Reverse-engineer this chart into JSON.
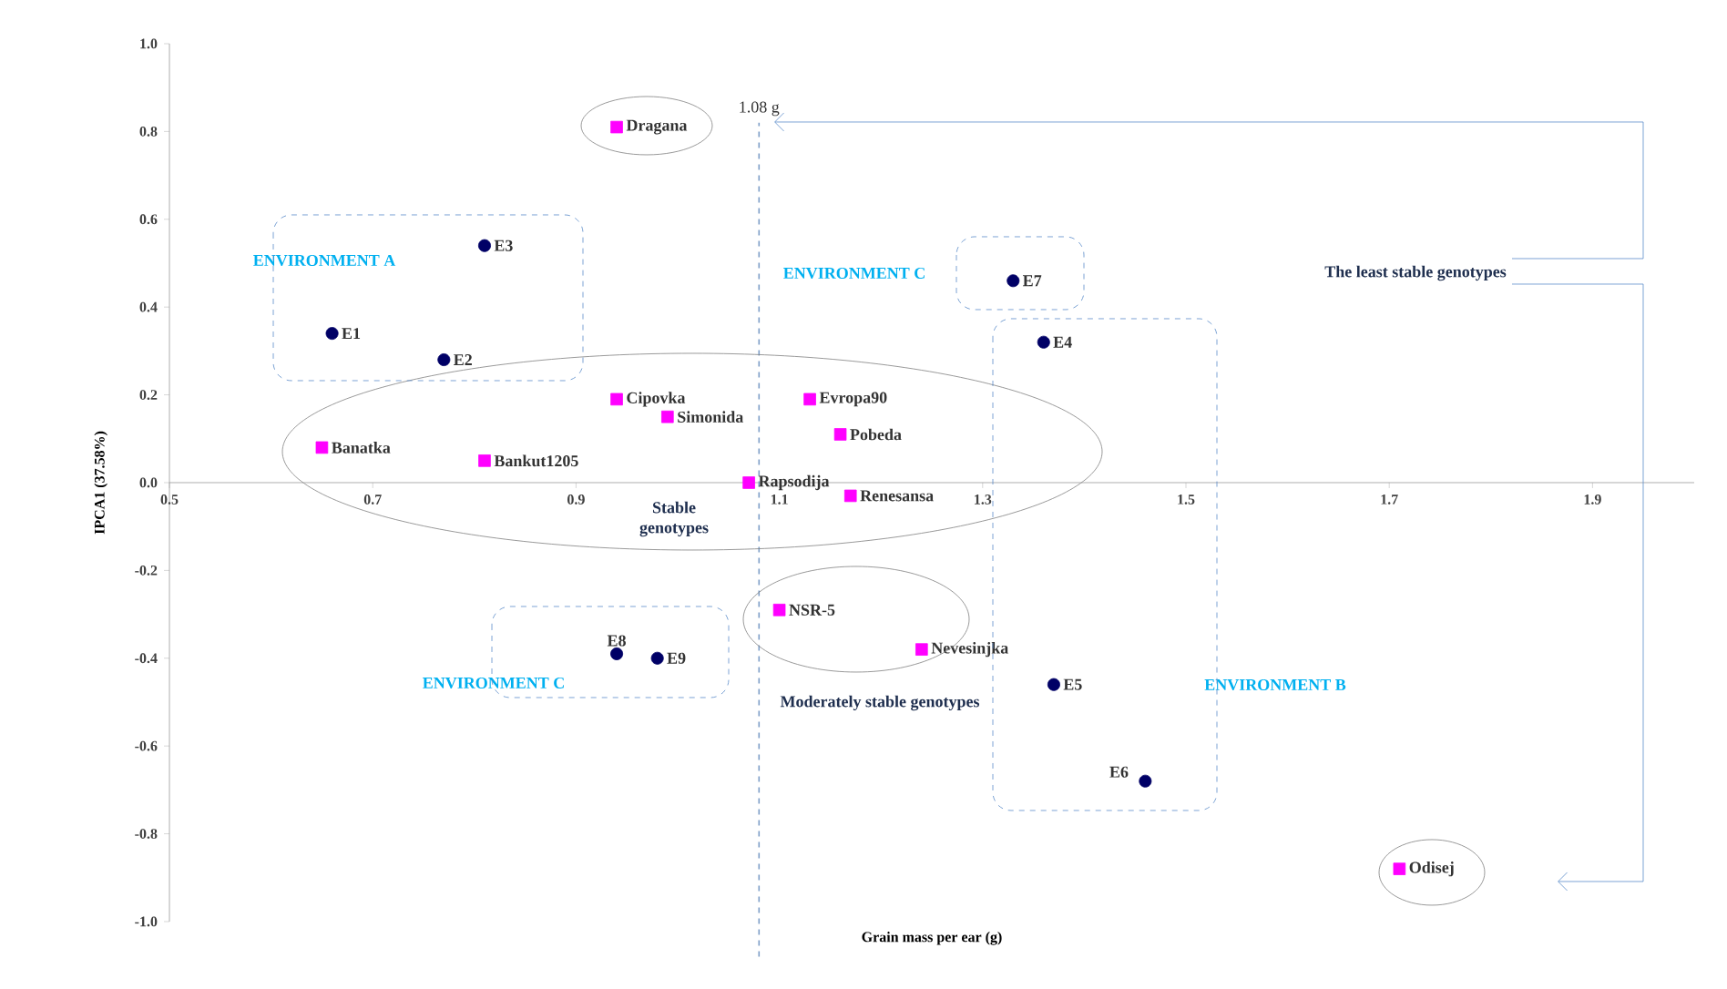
{
  "chart_data": {
    "type": "scatter",
    "xlabel": "Grain mass per ear (g)",
    "ylabel": "IPCA1 (37.58%)",
    "xlim": [
      0.5,
      2.0
    ],
    "ylim": [
      -1.0,
      1.0
    ],
    "xticks": [
      0.5,
      0.7,
      0.9,
      1.1,
      1.3,
      1.5,
      1.7,
      1.9
    ],
    "yticks": [
      {
        "value": -1.0,
        "label": "-1.0"
      },
      {
        "value": -0.8,
        "label": "-0.8"
      },
      {
        "value": -0.6,
        "label": "-0.6"
      },
      {
        "value": -0.4,
        "label": "-0.4"
      },
      {
        "value": -0.2,
        "label": "-0.2"
      },
      {
        "value": 0.0,
        "label": "0.0"
      },
      {
        "value": 0.2,
        "label": "0.2"
      },
      {
        "value": 0.4,
        "label": "0.4"
      },
      {
        "value": 0.6,
        "label": "0.6"
      },
      {
        "value": 0.8,
        "label": "0.8"
      },
      {
        "value": 1.0,
        "label": "1.0"
      }
    ],
    "series": [
      {
        "color": "#ff00ff",
        "marker": "square",
        "x": [
          0.94,
          0.65,
          0.81,
          0.94,
          0.99,
          1.13,
          1.16,
          1.07,
          1.17,
          1.1,
          1.24,
          1.71
        ],
        "values": [
          0.81,
          0.08,
          0.05,
          0.19,
          0.15,
          0.19,
          0.11,
          0.0,
          -0.03,
          -0.29,
          -0.38,
          -0.88
        ]
      },
      {
        "color": "#000066",
        "marker": "circle",
        "x": [
          0.81,
          0.66,
          0.77,
          1.33,
          1.36,
          0.94,
          0.98,
          1.37,
          1.46
        ],
        "values": [
          0.54,
          0.34,
          0.28,
          0.46,
          0.32,
          -0.39,
          -0.4,
          -0.46,
          -0.68
        ]
      }
    ],
    "ref_lines": [
      {
        "axis": "x",
        "value": 1.08,
        "label": "1.08 g",
        "color": "#7f9fc8",
        "line_style": "dashed"
      }
    ],
    "annotations": [
      {
        "text": "Dragana",
        "x": 0.94,
        "y": 0.81
      },
      {
        "text": "Banatka",
        "x": 0.65,
        "y": 0.08
      },
      {
        "text": "Bankut1205",
        "x": 0.81,
        "y": 0.05
      },
      {
        "text": "Cipovka",
        "x": 0.94,
        "y": 0.19
      },
      {
        "text": "Simonida",
        "x": 0.99,
        "y": 0.15
      },
      {
        "text": "Evropa90",
        "x": 1.13,
        "y": 0.19
      },
      {
        "text": "Pobeda",
        "x": 1.16,
        "y": 0.11
      },
      {
        "text": "Rapsodija",
        "x": 1.07,
        "y": 0.0
      },
      {
        "text": "Renesansa",
        "x": 1.17,
        "y": -0.03
      },
      {
        "text": "NSR-5",
        "x": 1.1,
        "y": -0.29
      },
      {
        "text": "Nevesinjka",
        "x": 1.24,
        "y": -0.38
      },
      {
        "text": "Odisej",
        "x": 1.71,
        "y": -0.88
      },
      {
        "text": "E3",
        "x": 0.81,
        "y": 0.54
      },
      {
        "text": "E1",
        "x": 0.66,
        "y": 0.34
      },
      {
        "text": "E2",
        "x": 0.77,
        "y": 0.28
      },
      {
        "text": "E7",
        "x": 1.33,
        "y": 0.46
      },
      {
        "text": "E4",
        "x": 1.36,
        "y": 0.32
      },
      {
        "text": "E8",
        "x": 0.94,
        "y": -0.39
      },
      {
        "text": "E9",
        "x": 0.98,
        "y": -0.4
      },
      {
        "text": "E5",
        "x": 1.37,
        "y": -0.46
      },
      {
        "text": "E6",
        "x": 1.46,
        "y": -0.68
      },
      "ENVIRONMENT A",
      "ENVIRONMENT C",
      "ENVIRONMENT C",
      "ENVIRONMENT B",
      "Stable genotypes",
      "Moderately stable genotypes",
      "The least stable genotypes"
    ]
  }
}
